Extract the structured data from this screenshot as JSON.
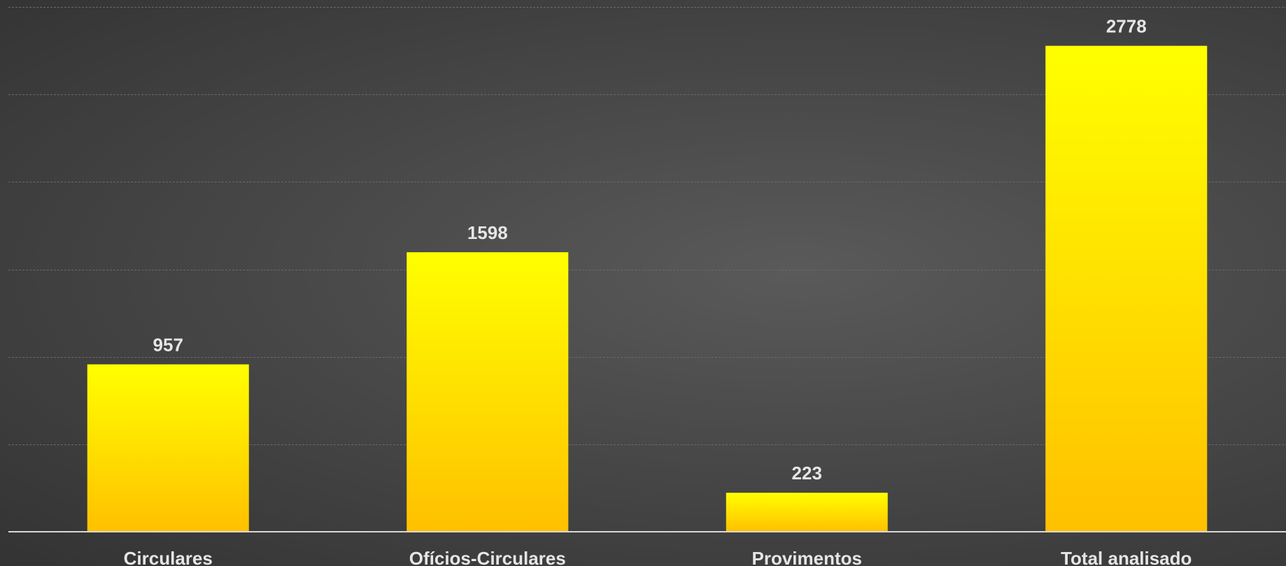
{
  "chart_data": {
    "type": "bar",
    "categories": [
      "Circulares",
      "Ofícios-Circulares",
      "Provimentos",
      "Total analisado"
    ],
    "values": [
      957,
      1598,
      223,
      2778
    ],
    "title": "",
    "xlabel": "",
    "ylabel": "",
    "ylim": [
      0,
      3000
    ],
    "grid": true,
    "legend": "none",
    "colors": {
      "bar_top": "#FFFF00",
      "bar_bottom": "#FFC000",
      "label": "#E6E6E6"
    }
  }
}
